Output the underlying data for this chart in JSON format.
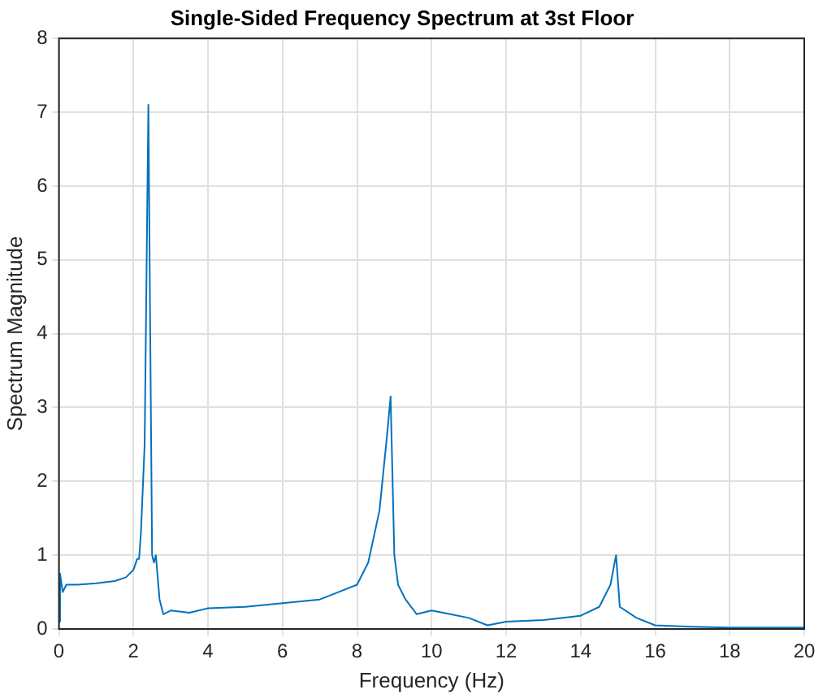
{
  "chart_data": {
    "type": "line",
    "title": "Single-Sided Frequency Spectrum at 3st Floor",
    "xlabel": "Frequency (Hz)",
    "ylabel": "Spectrum Magnitude",
    "series": [
      {
        "color": "#0072bd",
        "x": [
          0,
          0.03,
          0.1,
          0.2,
          0.5,
          1,
          1.5,
          1.8,
          2,
          2.1,
          2.15,
          2.2,
          2.3,
          2.4,
          2.45,
          2.5,
          2.55,
          2.6,
          2.7,
          2.8,
          3,
          3.5,
          4,
          5,
          6,
          7,
          7.5,
          8,
          8.3,
          8.6,
          8.8,
          8.9,
          9,
          9.1,
          9.3,
          9.6,
          10,
          10.5,
          11,
          11.5,
          12,
          13,
          14,
          14.5,
          14.8,
          14.95,
          15.05,
          15.5,
          16,
          17,
          18,
          20
        ],
        "values": [
          0.1,
          0.75,
          0.5,
          0.6,
          0.6,
          0.62,
          0.65,
          0.7,
          0.8,
          0.95,
          0.95,
          1.3,
          2.5,
          7.1,
          4,
          1,
          0.9,
          1,
          0.4,
          0.2,
          0.25,
          0.22,
          0.28,
          0.3,
          0.35,
          0.4,
          0.5,
          0.6,
          0.9,
          1.6,
          2.6,
          3.15,
          1,
          0.6,
          0.4,
          0.2,
          0.25,
          0.2,
          0.15,
          0.05,
          0.1,
          0.12,
          0.18,
          0.3,
          0.6,
          1,
          0.3,
          0.15,
          0.05,
          0.03,
          0.02,
          0.02
        ]
      }
    ],
    "xlim": [
      0,
      20
    ],
    "xticks": [
      0,
      2,
      4,
      6,
      8,
      10,
      12,
      14,
      16,
      18,
      20
    ],
    "ylim": [
      0,
      8
    ],
    "yticks": [
      0,
      1,
      2,
      3,
      4,
      5,
      6,
      7,
      8
    ],
    "grid": true,
    "legend": false,
    "marker": "none",
    "line_style": "solid"
  }
}
